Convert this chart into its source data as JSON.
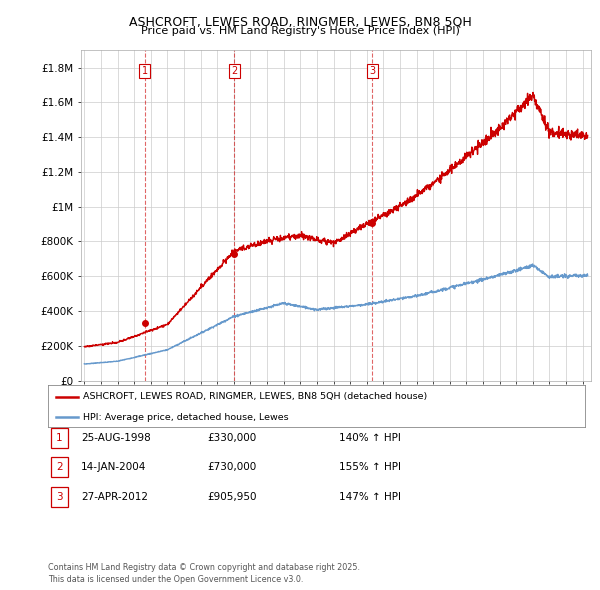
{
  "title1": "ASHCROFT, LEWES ROAD, RINGMER, LEWES, BN8 5QH",
  "title2": "Price paid vs. HM Land Registry's House Price Index (HPI)",
  "xlim_start": 1994.8,
  "xlim_end": 2025.5,
  "ylim_min": 0,
  "ylim_max": 1900000,
  "yticks": [
    0,
    200000,
    400000,
    600000,
    800000,
    1000000,
    1200000,
    1400000,
    1600000,
    1800000
  ],
  "ytick_labels": [
    "£0",
    "£200K",
    "£400K",
    "£600K",
    "£800K",
    "£1M",
    "£1.2M",
    "£1.4M",
    "£1.6M",
    "£1.8M"
  ],
  "sale_dates": [
    1998.647,
    2004.036,
    2012.319
  ],
  "sale_prices": [
    330000,
    730000,
    905950
  ],
  "sale_labels": [
    "1",
    "2",
    "3"
  ],
  "legend_red": "ASHCROFT, LEWES ROAD, RINGMER, LEWES, BN8 5QH (detached house)",
  "legend_blue": "HPI: Average price, detached house, Lewes",
  "table_rows": [
    [
      "1",
      "25-AUG-1998",
      "£330,000",
      "140% ↑ HPI"
    ],
    [
      "2",
      "14-JAN-2004",
      "£730,000",
      "155% ↑ HPI"
    ],
    [
      "3",
      "27-APR-2012",
      "£905,950",
      "147% ↑ HPI"
    ]
  ],
  "footnote": "Contains HM Land Registry data © Crown copyright and database right 2025.\nThis data is licensed under the Open Government Licence v3.0.",
  "red_color": "#cc0000",
  "blue_color": "#6699cc",
  "grid_color": "#cccccc",
  "bg_color": "#ffffff"
}
